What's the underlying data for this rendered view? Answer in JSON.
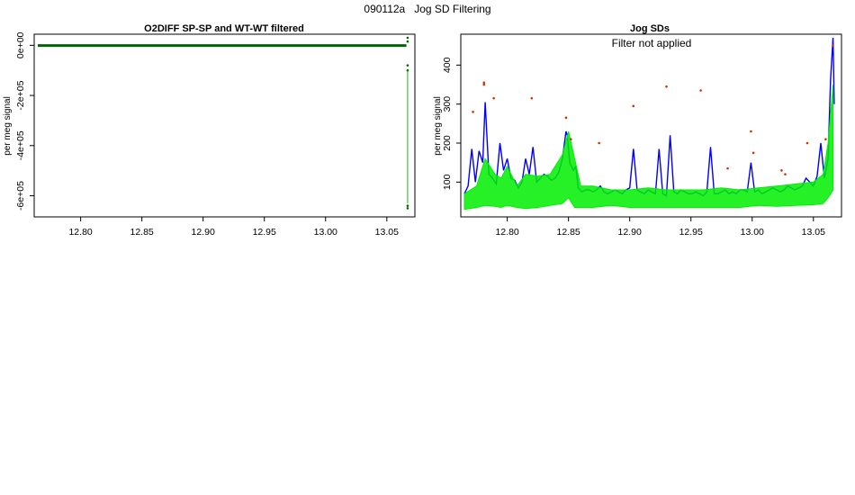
{
  "page_title": "090112a   Jog SD Filtering",
  "chart_data": [
    {
      "type": "scatter",
      "title": "O2DIFF SP-SP and WT-WT filtered",
      "xlabel": "",
      "ylabel": "per meg signal",
      "xlim": [
        12.765,
        13.07
      ],
      "ylim": [
        -670000,
        30000
      ],
      "x_ticks": [
        "12.80",
        "12.85",
        "12.90",
        "12.95",
        "13.00",
        "13.05"
      ],
      "x_tick_values": [
        12.8,
        12.85,
        12.9,
        12.95,
        13.0,
        13.05
      ],
      "y_ticks": [
        "0e+00",
        "-2e+05",
        "-4e+05",
        "-6e+05"
      ],
      "y_tick_values": [
        0,
        -200000,
        -400000,
        -600000
      ],
      "series": [
        {
          "color": "#006400",
          "x": [
            12.765,
            13.066
          ],
          "y": [
            -1000,
            -1000
          ],
          "style": "band"
        },
        {
          "color": "#006400",
          "x": [
            13.067,
            13.067,
            13.067,
            13.067,
            13.067,
            13.067
          ],
          "y": [
            30000,
            15000,
            -80000,
            -100000,
            -640000,
            -650000
          ],
          "style": "points"
        },
        {
          "color": "#22aa22",
          "x": [
            13.067
          ],
          "y": [
            -100000
          ],
          "y_end": -630000,
          "style": "vline"
        }
      ]
    },
    {
      "type": "line",
      "title": "Jog SDs",
      "annotation": "Filter not applied",
      "xlabel": "",
      "ylabel": "per meg signal",
      "xlim": [
        12.765,
        13.07
      ],
      "ylim": [
        20,
        470
      ],
      "x_ticks": [
        "12.80",
        "12.85",
        "12.90",
        "12.95",
        "13.00",
        "13.05"
      ],
      "x_tick_values": [
        12.8,
        12.85,
        12.9,
        12.95,
        13.0,
        13.05
      ],
      "y_ticks": [
        "100",
        "200",
        "300",
        "400"
      ],
      "y_tick_values": [
        100,
        200,
        300,
        400
      ],
      "series": [
        {
          "color": "#0000ff",
          "style": "line",
          "x": [
            12.765,
            12.768,
            12.771,
            12.774,
            12.777,
            12.78,
            12.782,
            12.785,
            12.788,
            12.791,
            12.794,
            12.797,
            12.8,
            12.803,
            12.806,
            12.809,
            12.812,
            12.815,
            12.818,
            12.821,
            12.824,
            12.827,
            12.83,
            12.833,
            12.836,
            12.839,
            12.842,
            12.845,
            12.848,
            12.849,
            12.851,
            12.854,
            12.856,
            12.858,
            12.861,
            12.864,
            12.867,
            12.87,
            12.873,
            12.876,
            12.879,
            12.882,
            12.885,
            12.888,
            12.891,
            12.894,
            12.897,
            12.9,
            12.903,
            12.906,
            12.909,
            12.912,
            12.915,
            12.918,
            12.921,
            12.924,
            12.927,
            12.93,
            12.933,
            12.936,
            12.939,
            12.942,
            12.945,
            12.948,
            12.951,
            12.954,
            12.957,
            12.96,
            12.963,
            12.966,
            12.969,
            12.972,
            12.975,
            12.978,
            12.981,
            12.984,
            12.987,
            12.99,
            12.993,
            12.996,
            12.999,
            13.002,
            13.005,
            13.008,
            13.011,
            13.014,
            13.017,
            13.02,
            13.023,
            13.026,
            13.029,
            13.032,
            13.035,
            13.038,
            13.041,
            13.044,
            13.047,
            13.05,
            13.053,
            13.056,
            13.059,
            13.062,
            13.064,
            13.066,
            13.067
          ],
          "y": [
            70,
            90,
            185,
            100,
            180,
            150,
            305,
            120,
            110,
            95,
            200,
            130,
            160,
            110,
            105,
            85,
            100,
            160,
            120,
            190,
            100,
            110,
            120,
            115,
            105,
            110,
            125,
            160,
            230,
            220,
            150,
            130,
            140,
            85,
            75,
            80,
            80,
            75,
            80,
            90,
            75,
            70,
            75,
            80,
            75,
            70,
            80,
            85,
            185,
            80,
            75,
            70,
            80,
            75,
            70,
            185,
            70,
            65,
            220,
            75,
            70,
            80,
            75,
            70,
            70,
            75,
            70,
            65,
            75,
            190,
            70,
            70,
            75,
            80,
            70,
            75,
            70,
            80,
            80,
            75,
            150,
            75,
            80,
            70,
            75,
            80,
            85,
            80,
            75,
            80,
            90,
            85,
            80,
            85,
            90,
            110,
            100,
            90,
            115,
            200,
            110,
            160,
            360,
            470,
            300
          ]
        },
        {
          "color": "#00ee00",
          "style": "band",
          "x": [
            12.765,
            12.775,
            12.782,
            12.79,
            12.795,
            12.8,
            12.808,
            12.815,
            12.825,
            12.835,
            12.845,
            12.85,
            12.855,
            12.86,
            12.87,
            12.885,
            12.9,
            12.915,
            12.93,
            12.945,
            12.96,
            12.975,
            12.99,
            13.005,
            13.02,
            13.035,
            13.05,
            13.058,
            13.062,
            13.066
          ],
          "y_low": [
            30,
            35,
            40,
            38,
            35,
            40,
            35,
            32,
            35,
            40,
            45,
            60,
            35,
            35,
            35,
            40,
            35,
            35,
            35,
            35,
            35,
            35,
            35,
            40,
            38,
            40,
            42,
            45,
            60,
            80
          ],
          "y_high": [
            70,
            90,
            160,
            120,
            110,
            140,
            90,
            120,
            115,
            120,
            170,
            230,
            160,
            90,
            90,
            80,
            80,
            85,
            80,
            80,
            80,
            85,
            80,
            85,
            90,
            95,
            100,
            120,
            200,
            350
          ]
        },
        {
          "color": "#cc3300",
          "style": "points",
          "x": [
            12.772,
            12.781,
            12.781,
            12.789,
            12.82,
            12.848,
            12.852,
            12.875,
            12.903,
            12.93,
            12.958,
            12.98,
            12.999,
            13.001,
            13.024,
            13.027,
            13.045,
            13.06,
            13.066
          ],
          "y": [
            280,
            355,
            350,
            315,
            315,
            265,
            210,
            200,
            295,
            345,
            335,
            135,
            230,
            175,
            130,
            120,
            200,
            210,
            450
          ]
        }
      ]
    }
  ]
}
